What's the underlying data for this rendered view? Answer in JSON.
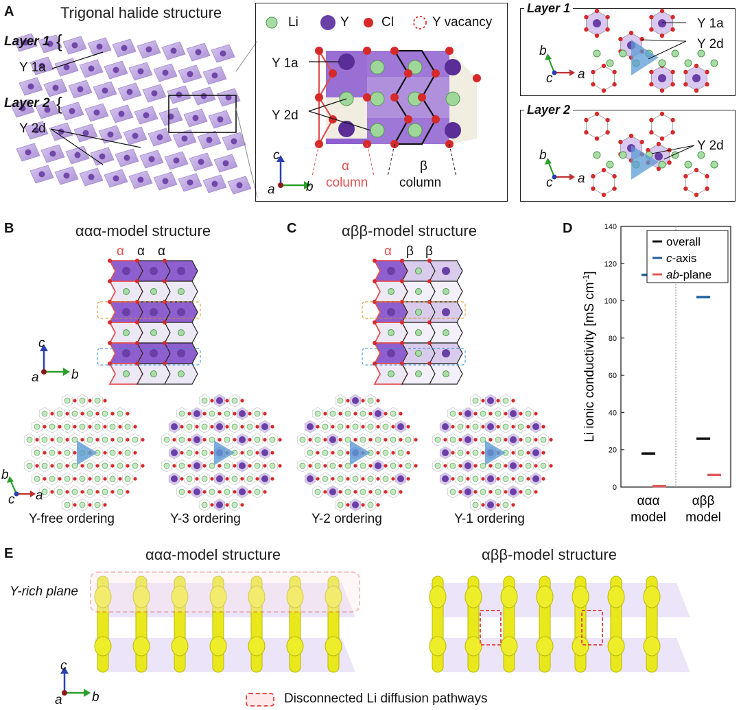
{
  "panels": {
    "A": {
      "label": "A",
      "title": "Trigonal halide structure",
      "layer1": "Layer 1",
      "layer2": "Layer 2",
      "y1a": "Y 1a",
      "y2d": "Y 2d",
      "legend": {
        "li": "Li",
        "y": "Y",
        "cl": "Cl",
        "vac": "Y vacancy"
      },
      "center_y1a": "Y 1a",
      "center_y2d": "Y 2d",
      "alpha": "α",
      "alpha_col": "column",
      "beta": "β",
      "beta_col": "column",
      "inset1_title": "Layer 1",
      "inset1_y1a": "Y 1a",
      "inset1_y2d": "Y 2d",
      "inset2_title": "Layer 2",
      "inset2_y2d": "Y 2d",
      "axes_c": "c",
      "axes_a": "a",
      "axes_b": "b"
    },
    "B": {
      "label": "B",
      "title": "ααα-model structure",
      "col1": "α",
      "col2": "α",
      "col3": "α",
      "ord1": "Y-free ordering",
      "ord2": "Y-3 ordering"
    },
    "C": {
      "label": "C",
      "title": "αββ-model structure",
      "col1": "α",
      "col2": "β",
      "col3": "β",
      "ord1": "Y-2 ordering",
      "ord2": "Y-1 ordering"
    },
    "E": {
      "label": "E",
      "left_title": "ααα-model structure",
      "right_title": "αββ-model structure",
      "y_rich": "Y-rich plane",
      "footer": "Disconnected Li diffusion pathways"
    }
  },
  "colors": {
    "li": "#7cc47a",
    "y": "#6a3fa6",
    "cl": "#d62a2a",
    "purple_face": "#9b72cf",
    "blue_arrow": "#5b9bd5",
    "yellow_iso": "#e6e61a"
  },
  "chart_data": {
    "label": "D",
    "type": "scatter",
    "marker": "horizontal-dash",
    "categories": [
      "ααα model",
      "αββ model"
    ],
    "category_lines": [
      [
        "ααα",
        "model"
      ],
      [
        "αββ",
        "model"
      ]
    ],
    "ylabel": "Li ionic conductivity [mS cm",
    "ylabel_sup": "-1",
    "ylabel_tail": "]",
    "ylim": [
      0,
      140
    ],
    "yticks": [
      0,
      20,
      40,
      60,
      80,
      100,
      120,
      140
    ],
    "legend_position": "top-right",
    "series": [
      {
        "name": "overall",
        "values": [
          18,
          26
        ],
        "color": "#111111"
      },
      {
        "name": "c-axis",
        "values": [
          114,
          102
        ],
        "color": "#1f5f9f"
      },
      {
        "name": "ab-plane",
        "values": [
          0.5,
          6.5
        ],
        "color": "#e05a5a"
      }
    ],
    "legend_labels": [
      {
        "pre": "",
        "it": "",
        "post": "overall"
      },
      {
        "pre": "",
        "it": "c",
        "post": "-axis"
      },
      {
        "pre": "",
        "it": "ab",
        "post": "-plane"
      }
    ]
  }
}
